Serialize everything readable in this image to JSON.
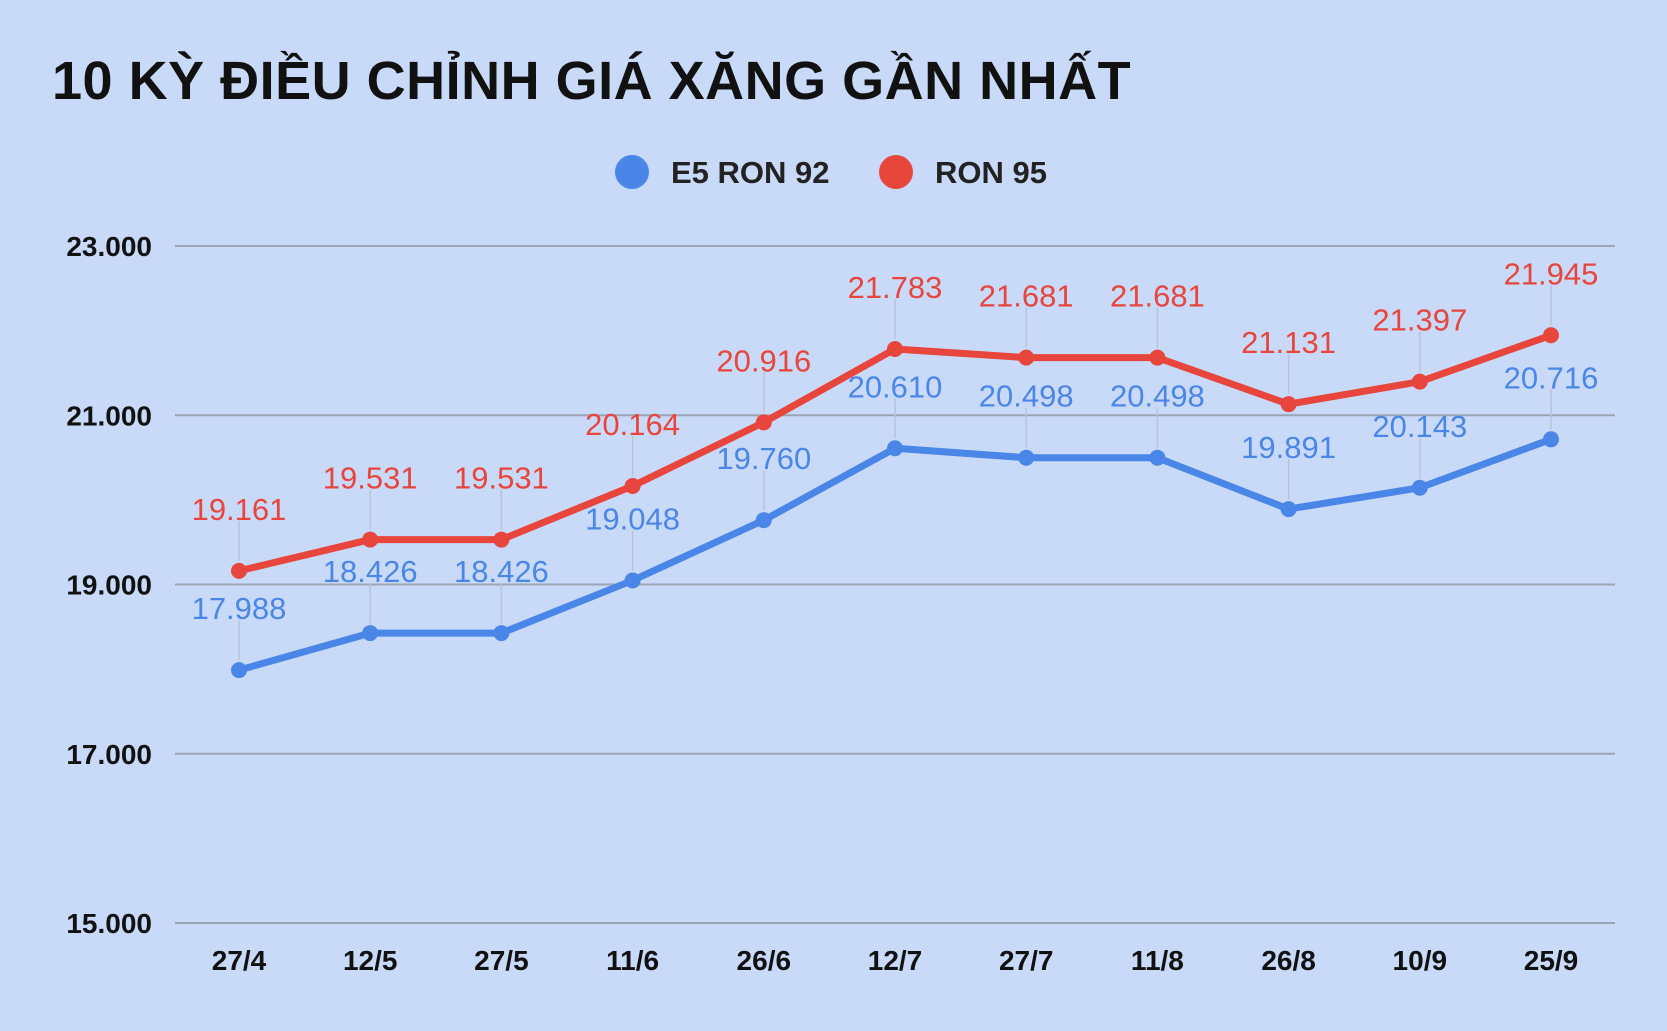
{
  "chart_data": {
    "type": "line",
    "title": "10 KỲ ĐIỀU CHỈNH GIÁ XĂNG GẦN NHẤT",
    "categories": [
      "27/4",
      "12/5",
      "27/5",
      "11/6",
      "26/6",
      "12/7",
      "27/7",
      "11/8",
      "26/8",
      "10/9",
      "25/9"
    ],
    "series": [
      {
        "name": "E5 RON 92",
        "color": "#4a86e8",
        "values": [
          17988,
          18426,
          18426,
          19048,
          19760,
          20610,
          20498,
          20498,
          19891,
          20143,
          20716
        ],
        "labels": [
          "17.988",
          "18.426",
          "18.426",
          "19.048",
          "19.760",
          "20.610",
          "20.498",
          "20.498",
          "19.891",
          "20.143",
          "20.716"
        ]
      },
      {
        "name": "RON 95",
        "color": "#e8453c",
        "values": [
          19161,
          19531,
          19531,
          20164,
          20916,
          21783,
          21681,
          21681,
          21131,
          21397,
          21945
        ],
        "labels": [
          "19.161",
          "19.531",
          "19.531",
          "20.164",
          "20.916",
          "21.783",
          "21.681",
          "21.681",
          "21.131",
          "21.397",
          "21.945"
        ]
      }
    ],
    "ylim": [
      15000,
      23000
    ],
    "yticks": [
      15000,
      17000,
      19000,
      21000,
      23000
    ],
    "ytick_labels": [
      "15.000",
      "17.000",
      "19.000",
      "21.000",
      "23.000"
    ],
    "grid": true,
    "legend": "top-center",
    "xlabel": "",
    "ylabel": ""
  },
  "colors": {
    "background": "#c9daf8",
    "gridline": "#9aa4b4",
    "leader": "#b8c3d6"
  }
}
